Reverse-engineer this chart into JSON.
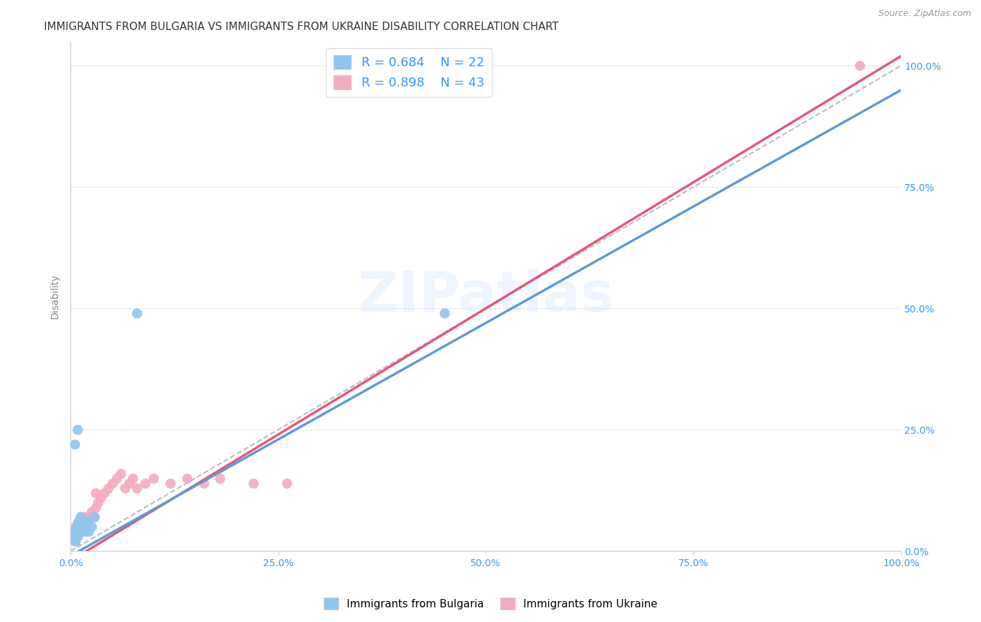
{
  "title": "IMMIGRANTS FROM BULGARIA VS IMMIGRANTS FROM UKRAINE DISABILITY CORRELATION CHART",
  "source": "Source: ZipAtlas.com",
  "ylabel": "Disability",
  "xlim": [
    0,
    1
  ],
  "ylim": [
    0,
    1.05
  ],
  "xticks": [
    0.0,
    0.25,
    0.5,
    0.75,
    1.0
  ],
  "xtick_labels": [
    "0.0%",
    "25.0%",
    "50.0%",
    "75.0%",
    "100.0%"
  ],
  "yticks": [
    0.0,
    0.25,
    0.5,
    0.75,
    1.0
  ],
  "ytick_labels": [
    "0.0%",
    "25.0%",
    "50.0%",
    "75.0%",
    "100.0%"
  ],
  "bulgaria_color": "#8EC6F0",
  "ukraine_color": "#F5AABF",
  "bulgaria_line_color": "#5B9BD5",
  "ukraine_line_color": "#E8557A",
  "bulgaria_R": 0.684,
  "bulgaria_N": 22,
  "ukraine_R": 0.898,
  "ukraine_N": 43,
  "legend_text_color": "#3399FF",
  "watermark_text": "ZIPatlas",
  "bulgaria_scatter_x": [
    0.003,
    0.005,
    0.006,
    0.007,
    0.008,
    0.009,
    0.01,
    0.011,
    0.012,
    0.013,
    0.015,
    0.016,
    0.018,
    0.019,
    0.02,
    0.022,
    0.025,
    0.028,
    0.005,
    0.008,
    0.45,
    0.08
  ],
  "bulgaria_scatter_y": [
    0.03,
    0.04,
    0.02,
    0.05,
    0.03,
    0.06,
    0.04,
    0.05,
    0.07,
    0.04,
    0.06,
    0.05,
    0.04,
    0.06,
    0.06,
    0.04,
    0.05,
    0.07,
    0.22,
    0.25,
    0.49,
    0.49
  ],
  "ukraine_scatter_x": [
    0.003,
    0.004,
    0.005,
    0.006,
    0.007,
    0.008,
    0.009,
    0.01,
    0.011,
    0.012,
    0.013,
    0.014,
    0.015,
    0.016,
    0.017,
    0.018,
    0.019,
    0.02,
    0.022,
    0.025,
    0.028,
    0.03,
    0.033,
    0.036,
    0.04,
    0.045,
    0.05,
    0.055,
    0.06,
    0.065,
    0.07,
    0.075,
    0.08,
    0.09,
    0.1,
    0.12,
    0.14,
    0.16,
    0.18,
    0.22,
    0.26,
    0.03,
    0.95
  ],
  "ukraine_scatter_y": [
    0.03,
    0.04,
    0.02,
    0.05,
    0.04,
    0.03,
    0.06,
    0.04,
    0.05,
    0.06,
    0.05,
    0.07,
    0.04,
    0.06,
    0.05,
    0.07,
    0.06,
    0.05,
    0.07,
    0.08,
    0.07,
    0.09,
    0.1,
    0.11,
    0.12,
    0.13,
    0.14,
    0.15,
    0.16,
    0.13,
    0.14,
    0.15,
    0.13,
    0.14,
    0.15,
    0.14,
    0.15,
    0.14,
    0.15,
    0.14,
    0.14,
    0.12,
    1.0
  ],
  "bg_color": "#FFFFFF",
  "grid_color": "#E0E0E0",
  "title_fontsize": 11,
  "axis_label_fontsize": 10,
  "tick_fontsize": 10,
  "right_ytick_color": "#3399FF",
  "bulgaria_line_x0": 0.0,
  "bulgaria_line_y0": -0.01,
  "bulgaria_line_x1": 1.0,
  "bulgaria_line_y1": 0.95,
  "ukraine_line_x0": 0.0,
  "ukraine_line_y0": -0.02,
  "ukraine_line_x1": 1.0,
  "ukraine_line_y1": 1.02
}
